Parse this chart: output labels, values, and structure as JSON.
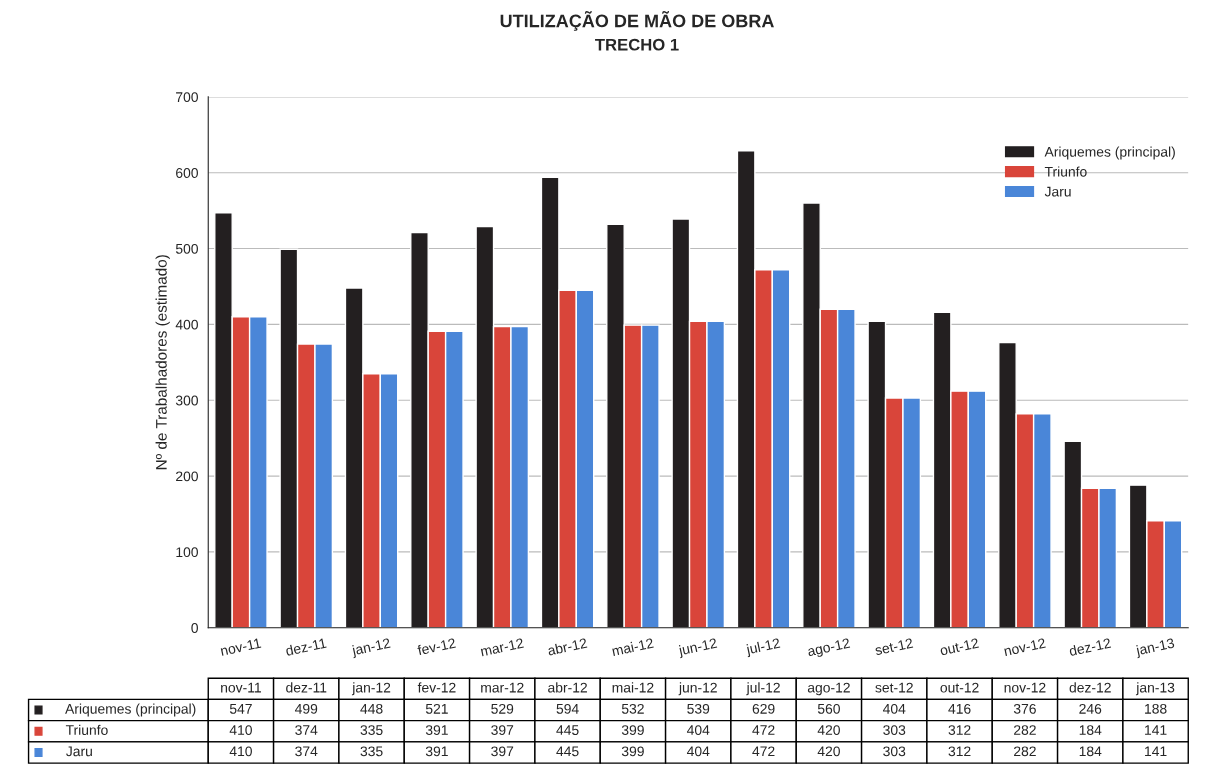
{
  "chart_data": {
    "type": "bar",
    "title": "UTILIZAÇÃO DE MÃO DE OBRA",
    "subtitle": "TRECHO 1",
    "ylabel": "Nº de Trabalhadores (estimado)",
    "categories": [
      "nov-11",
      "dez-11",
      "jan-12",
      "fev-12",
      "mar-12",
      "abr-12",
      "mai-12",
      "jun-12",
      "jul-12",
      "ago-12",
      "set-12",
      "out-12",
      "nov-12",
      "dez-12",
      "jan-13"
    ],
    "series": [
      {
        "name": "Ariquemes (principal)",
        "color": "#231f20",
        "values": [
          547,
          499,
          448,
          521,
          529,
          594,
          532,
          539,
          629,
          560,
          404,
          416,
          376,
          246,
          188
        ]
      },
      {
        "name": "Triunfo",
        "color": "#d9453a",
        "values": [
          410,
          374,
          335,
          391,
          397,
          445,
          399,
          404,
          472,
          420,
          303,
          312,
          282,
          184,
          141
        ]
      },
      {
        "name": "Jaru",
        "color": "#4a86d8",
        "values": [
          410,
          374,
          335,
          391,
          397,
          445,
          399,
          404,
          472,
          420,
          303,
          312,
          282,
          184,
          141
        ]
      }
    ],
    "ylim": [
      0,
      700
    ],
    "yticks": [
      0,
      100,
      200,
      300,
      400,
      500,
      600,
      700
    ],
    "grid": "y",
    "legend": "top right",
    "data_labels": true
  }
}
